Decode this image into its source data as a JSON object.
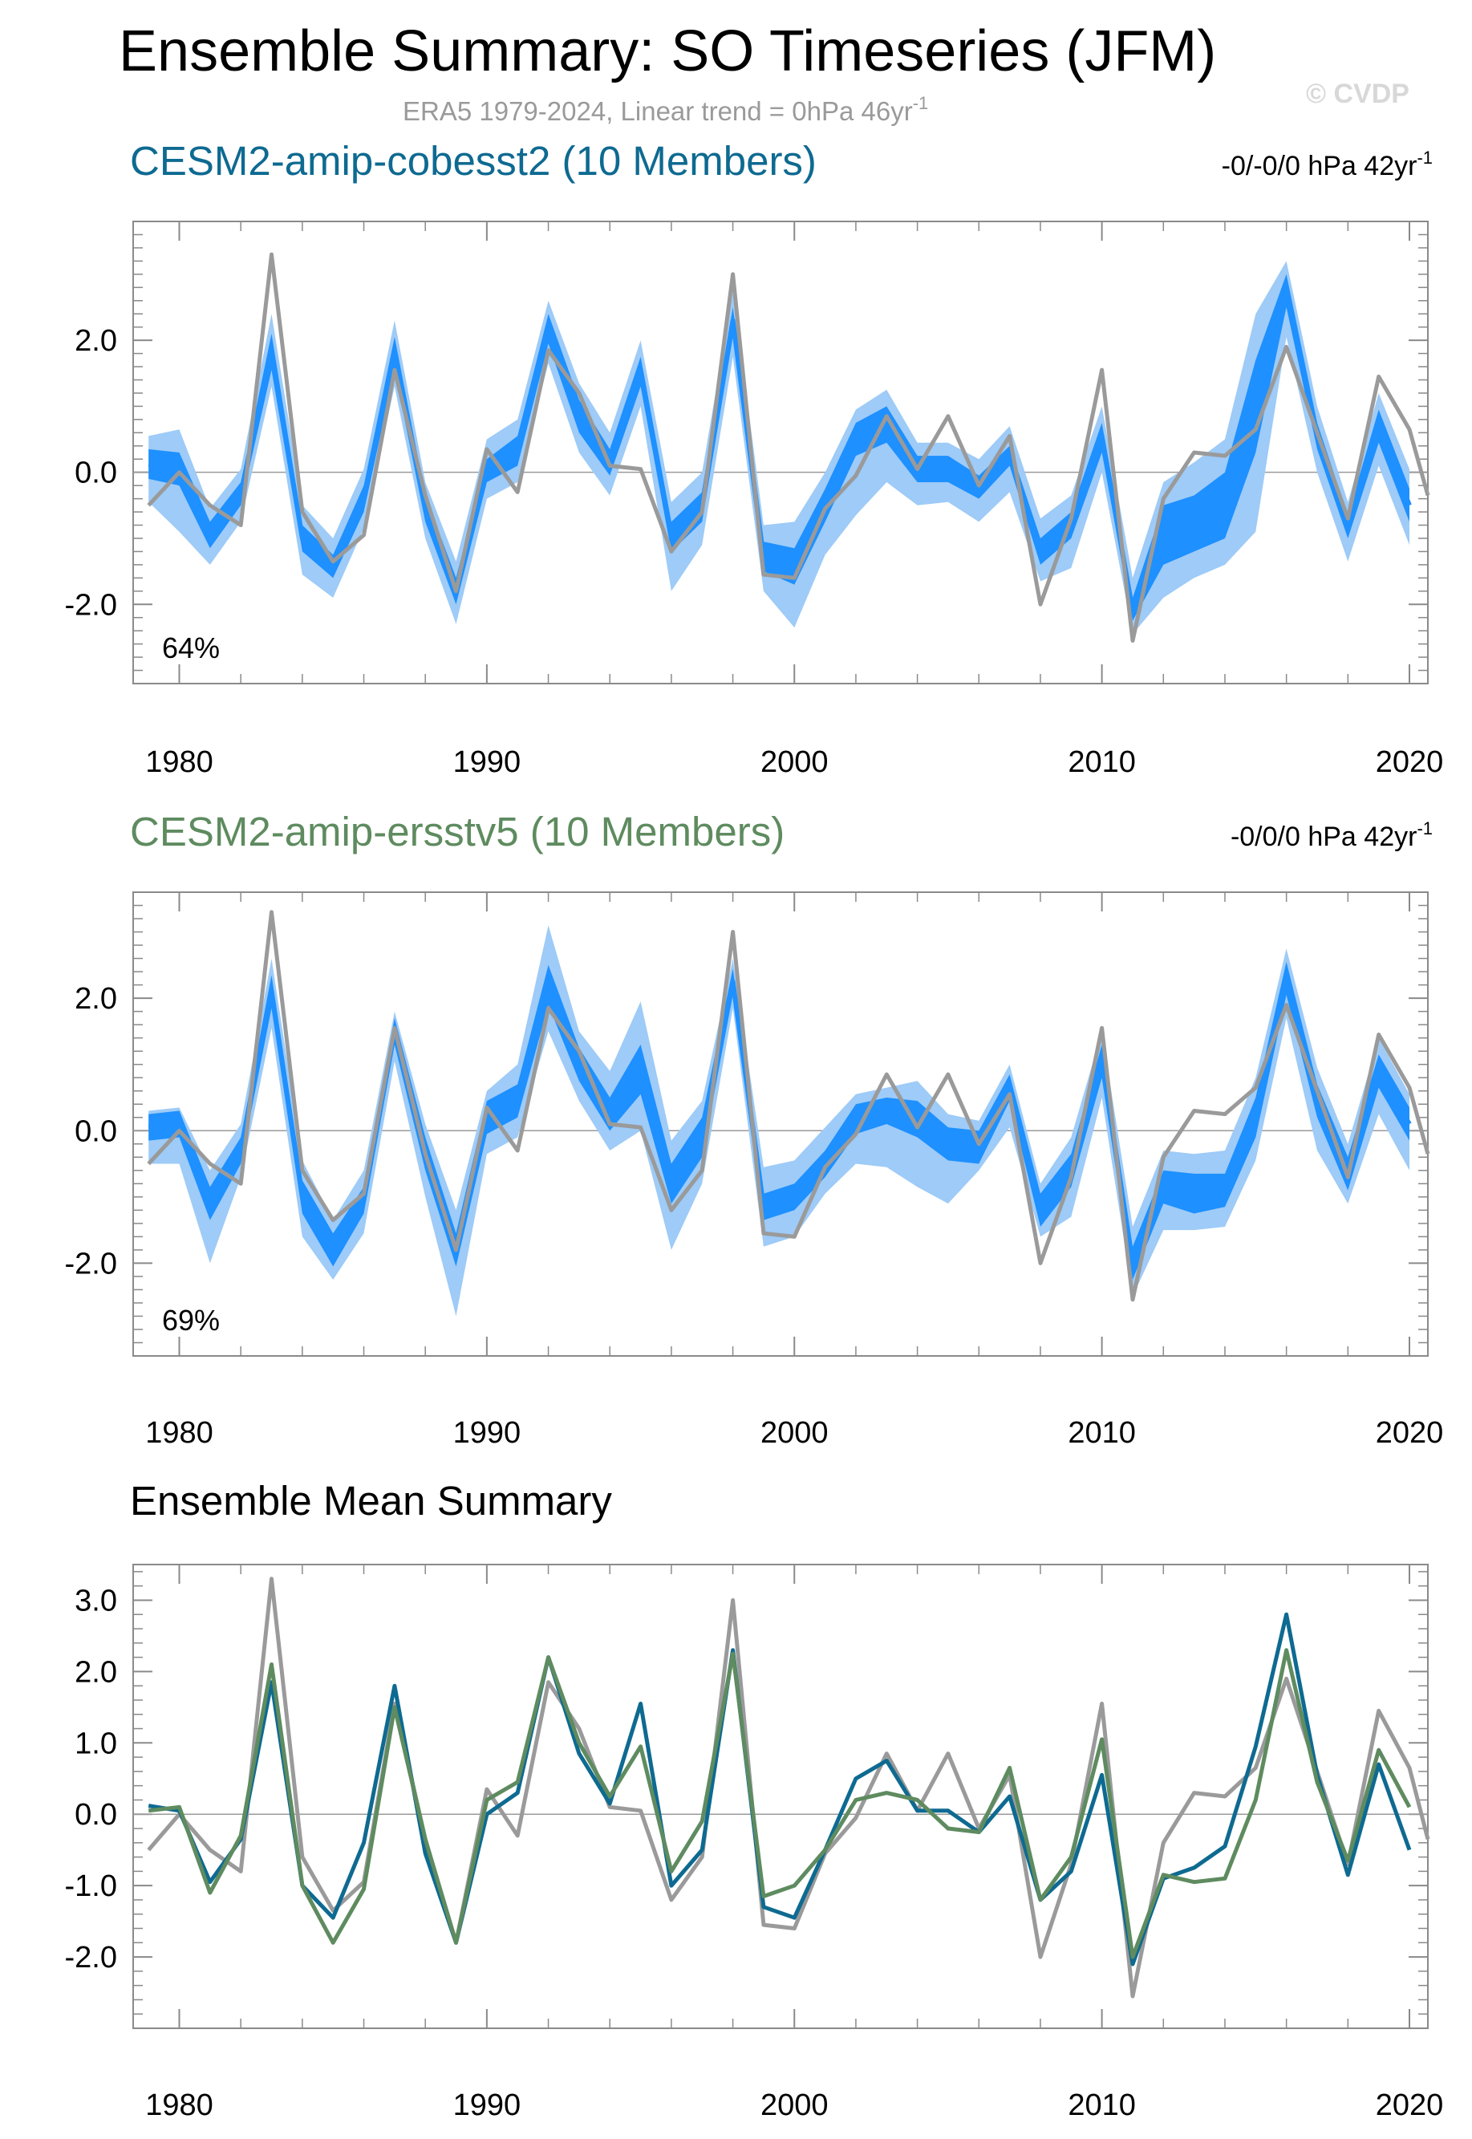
{
  "header": {
    "title": "Ensemble Summary: SO Timeseries (JFM)",
    "subtitle": "ERA5 1979-2024, Linear trend = 0hPa 46yr",
    "subtitle_sup": "-1",
    "watermark": "© CVDP"
  },
  "chart_data": [
    {
      "type": "area",
      "title": "CESM2-amip-cobesst2 (10 Members)",
      "title_color": "#0e6a91",
      "trend_text": "-0/-0/0 hPa 42yr",
      "trend_sup": "-1",
      "corr_label": "64%",
      "ylim": [
        -3.2,
        3.8
      ],
      "xlim": [
        1978.5,
        2020.6
      ],
      "yticks": [
        -2.0,
        0.0,
        2.0
      ],
      "ytick_labels": [
        "-2.0",
        "0.0",
        "2.0"
      ],
      "xticks": [
        1980,
        1990,
        2000,
        2010,
        2020
      ],
      "xtick_labels": [
        "1980",
        "1990",
        "2000",
        "2010",
        "2020"
      ],
      "colors": {
        "mean": "#1e90ff",
        "inner": "#1e90ff",
        "outer": "#9ecbf7",
        "obs": "#9a9a9a"
      },
      "years": [
        1979,
        1980,
        1981,
        1982,
        1983,
        1984,
        1985,
        1986,
        1987,
        1988,
        1989,
        1990,
        1991,
        1992,
        1993,
        1994,
        1995,
        1996,
        1997,
        1998,
        1999,
        2000,
        2001,
        2002,
        2003,
        2004,
        2005,
        2006,
        2007,
        2008,
        2009,
        2010,
        2011,
        2012,
        2013,
        2014,
        2015,
        2016,
        2017,
        2018,
        2019,
        2020
      ],
      "mean": [
        0.12,
        0.05,
        -0.95,
        -0.35,
        1.85,
        -1.0,
        -1.45,
        -0.4,
        1.8,
        -0.55,
        -1.8,
        0.0,
        0.3,
        2.2,
        0.85,
        0.15,
        1.55,
        -1.0,
        -0.5,
        2.3,
        -1.3,
        -1.45,
        -0.5,
        0.5,
        0.75,
        0.05,
        0.05,
        -0.25,
        0.25,
        -1.2,
        -0.8,
        0.55,
        -2.1,
        -0.9,
        -0.75,
        -0.45,
        0.95,
        2.8,
        0.55,
        -0.85,
        0.7,
        -0.5
      ],
      "inner_low": [
        -0.1,
        -0.2,
        -1.15,
        -0.5,
        1.55,
        -1.2,
        -1.6,
        -0.6,
        1.55,
        -0.75,
        -2.0,
        -0.15,
        0.1,
        1.95,
        0.6,
        -0.05,
        1.3,
        -1.2,
        -0.75,
        2.05,
        -1.5,
        -1.7,
        -0.75,
        0.25,
        0.45,
        -0.15,
        -0.15,
        -0.4,
        0.1,
        -1.4,
        -1.0,
        0.3,
        -2.25,
        -1.4,
        -1.2,
        -1.0,
        0.3,
        2.5,
        0.35,
        -1.0,
        0.45,
        -0.75
      ],
      "inner_high": [
        0.35,
        0.3,
        -0.75,
        -0.15,
        2.1,
        -0.8,
        -1.25,
        -0.2,
        2.05,
        -0.35,
        -1.6,
        0.2,
        0.55,
        2.4,
        1.1,
        0.35,
        1.75,
        -0.75,
        -0.3,
        2.5,
        -1.05,
        -1.15,
        -0.25,
        0.75,
        1.0,
        0.25,
        0.25,
        -0.05,
        0.4,
        -1.0,
        -0.6,
        0.75,
        -1.9,
        -0.5,
        -0.35,
        0.0,
        1.7,
        3.0,
        0.75,
        -0.65,
        0.95,
        -0.25
      ],
      "outer_low": [
        -0.45,
        -0.9,
        -1.4,
        -0.75,
        1.3,
        -1.55,
        -1.9,
        -0.85,
        1.3,
        -1.0,
        -2.3,
        -0.4,
        -0.15,
        1.65,
        0.3,
        -0.35,
        1.0,
        -1.8,
        -1.1,
        1.75,
        -1.8,
        -2.35,
        -1.25,
        -0.65,
        -0.15,
        -0.5,
        -0.45,
        -0.75,
        -0.3,
        -1.65,
        -1.45,
        0.0,
        -2.45,
        -1.9,
        -1.6,
        -1.4,
        -0.9,
        2.05,
        0.0,
        -1.35,
        0.1,
        -1.1
      ],
      "outer_high": [
        0.55,
        0.65,
        -0.55,
        0.05,
        2.4,
        -0.5,
        -1.0,
        0.05,
        2.3,
        -0.15,
        -1.35,
        0.5,
        0.8,
        2.6,
        1.35,
        0.6,
        2.0,
        -0.45,
        0.0,
        2.75,
        -0.8,
        -0.75,
        0.0,
        0.95,
        1.25,
        0.45,
        0.45,
        0.2,
        0.7,
        -0.7,
        -0.35,
        1.0,
        -1.6,
        -0.15,
        0.15,
        0.5,
        2.4,
        3.2,
        1.0,
        -0.45,
        1.2,
        0.05
      ],
      "obs_years": [
        1979,
        1980,
        1981,
        1982,
        1983,
        1984,
        1985,
        1986,
        1987,
        1988,
        1989,
        1990,
        1991,
        1992,
        1993,
        1994,
        1995,
        1996,
        1997,
        1998,
        1999,
        2000,
        2001,
        2002,
        2003,
        2004,
        2005,
        2006,
        2007,
        2008,
        2009,
        2010,
        2011,
        2012,
        2013,
        2014,
        2015,
        2016,
        2017,
        2018,
        2019,
        2020,
        2020.6
      ],
      "obs": [
        -0.5,
        0.0,
        -0.5,
        -0.8,
        3.3,
        -0.6,
        -1.35,
        -0.95,
        1.55,
        -0.35,
        -1.8,
        0.35,
        -0.3,
        1.85,
        1.2,
        0.1,
        0.05,
        -1.2,
        -0.6,
        3.0,
        -1.55,
        -1.6,
        -0.55,
        -0.05,
        0.85,
        0.05,
        0.85,
        -0.2,
        0.55,
        -2.0,
        -0.7,
        1.55,
        -2.55,
        -0.4,
        0.3,
        0.25,
        0.65,
        1.9,
        0.6,
        -0.7,
        1.45,
        0.65,
        -0.35
      ]
    },
    {
      "type": "area",
      "title": "CESM2-amip-ersstv5 (10 Members)",
      "title_color": "#5e8b5f",
      "trend_text": "-0/0/0 hPa 42yr",
      "trend_sup": "-1",
      "corr_label": "69%",
      "ylim": [
        -3.4,
        3.6
      ],
      "xlim": [
        1978.5,
        2020.6
      ],
      "yticks": [
        -2.0,
        0.0,
        2.0
      ],
      "ytick_labels": [
        "-2.0",
        "0.0",
        "2.0"
      ],
      "xticks": [
        1980,
        1990,
        2000,
        2010,
        2020
      ],
      "xtick_labels": [
        "1980",
        "1990",
        "2000",
        "2010",
        "2020"
      ],
      "colors": {
        "mean": "#1e90ff",
        "inner": "#1e90ff",
        "outer": "#9ecbf7",
        "obs": "#9a9a9a"
      },
      "years": [
        1979,
        1980,
        1981,
        1982,
        1983,
        1984,
        1985,
        1986,
        1987,
        1988,
        1989,
        1990,
        1991,
        1992,
        1993,
        1994,
        1995,
        1996,
        1997,
        1998,
        1999,
        2000,
        2001,
        2002,
        2003,
        2004,
        2005,
        2006,
        2007,
        2008,
        2009,
        2010,
        2011,
        2012,
        2013,
        2014,
        2015,
        2016,
        2017,
        2018,
        2019,
        2020
      ],
      "mean": [
        0.05,
        0.1,
        -1.1,
        -0.3,
        2.1,
        -1.0,
        -1.8,
        -1.05,
        1.5,
        -0.35,
        -1.8,
        0.2,
        0.45,
        2.2,
        1.0,
        0.25,
        0.95,
        -0.8,
        -0.1,
        2.25,
        -1.15,
        -1.0,
        -0.5,
        0.2,
        0.3,
        0.2,
        -0.2,
        -0.25,
        0.65,
        -1.2,
        -0.6,
        1.05,
        -2.0,
        -0.85,
        -0.95,
        -0.9,
        0.2,
        2.3,
        0.45,
        -0.65,
        0.9,
        0.1
      ],
      "inner_low": [
        -0.15,
        -0.1,
        -1.35,
        -0.5,
        1.85,
        -1.25,
        -2.05,
        -1.25,
        1.3,
        -0.6,
        -2.05,
        -0.05,
        0.2,
        1.9,
        0.75,
        0.0,
        0.55,
        -1.1,
        -0.4,
        2.05,
        -1.35,
        -1.2,
        -0.7,
        -0.05,
        0.1,
        -0.1,
        -0.45,
        -0.5,
        0.45,
        -1.45,
        -0.85,
        0.8,
        -2.25,
        -1.1,
        -1.25,
        -1.15,
        -0.1,
        2.05,
        0.2,
        -0.9,
        0.65,
        -0.15
      ],
      "inner_high": [
        0.25,
        0.3,
        -0.85,
        -0.1,
        2.35,
        -0.75,
        -1.55,
        -0.85,
        1.7,
        -0.1,
        -1.55,
        0.45,
        0.7,
        2.5,
        1.25,
        0.5,
        1.3,
        -0.5,
        0.2,
        2.45,
        -0.95,
        -0.8,
        -0.3,
        0.4,
        0.5,
        0.45,
        0.05,
        0.0,
        0.85,
        -0.95,
        -0.35,
        1.3,
        -1.75,
        -0.6,
        -0.65,
        -0.65,
        0.5,
        2.55,
        0.7,
        -0.4,
        1.15,
        0.35
      ],
      "outer_low": [
        -0.5,
        -0.5,
        -2.0,
        -0.7,
        1.55,
        -1.6,
        -2.25,
        -1.55,
        1.05,
        -1.0,
        -2.8,
        -0.35,
        -0.1,
        1.5,
        0.45,
        -0.3,
        0.0,
        -1.8,
        -0.8,
        1.85,
        -1.75,
        -1.6,
        -0.95,
        -0.5,
        -0.55,
        -0.85,
        -1.1,
        -0.6,
        0.05,
        -1.6,
        -1.3,
        0.5,
        -2.5,
        -1.5,
        -1.5,
        -1.45,
        -0.45,
        1.7,
        -0.3,
        -1.1,
        0.25,
        -0.6
      ],
      "outer_high": [
        0.3,
        0.35,
        -0.6,
        0.1,
        2.6,
        -0.45,
        -1.35,
        -0.6,
        1.8,
        0.1,
        -1.2,
        0.6,
        1.0,
        3.1,
        1.5,
        0.9,
        1.95,
        -0.15,
        0.45,
        2.6,
        -0.55,
        -0.45,
        0.05,
        0.55,
        0.65,
        0.75,
        0.25,
        0.15,
        1.0,
        -0.8,
        -0.1,
        1.5,
        -1.45,
        -0.3,
        -0.35,
        -0.3,
        0.8,
        2.75,
        0.95,
        -0.2,
        1.4,
        0.55
      ],
      "obs_years": [
        1979,
        1980,
        1981,
        1982,
        1983,
        1984,
        1985,
        1986,
        1987,
        1988,
        1989,
        1990,
        1991,
        1992,
        1993,
        1994,
        1995,
        1996,
        1997,
        1998,
        1999,
        2000,
        2001,
        2002,
        2003,
        2004,
        2005,
        2006,
        2007,
        2008,
        2009,
        2010,
        2011,
        2012,
        2013,
        2014,
        2015,
        2016,
        2017,
        2018,
        2019,
        2020,
        2020.6
      ],
      "obs": [
        -0.5,
        0.0,
        -0.5,
        -0.8,
        3.3,
        -0.6,
        -1.35,
        -0.95,
        1.55,
        -0.35,
        -1.8,
        0.35,
        -0.3,
        1.85,
        1.2,
        0.1,
        0.05,
        -1.2,
        -0.6,
        3.0,
        -1.55,
        -1.6,
        -0.55,
        -0.05,
        0.85,
        0.05,
        0.85,
        -0.2,
        0.55,
        -2.0,
        -0.7,
        1.55,
        -2.55,
        -0.4,
        0.3,
        0.25,
        0.65,
        1.9,
        0.6,
        -0.7,
        1.45,
        0.65,
        -0.35
      ]
    },
    {
      "type": "line",
      "title": "Ensemble Mean Summary",
      "title_color": "#000000",
      "ylim": [
        -3.0,
        3.5
      ],
      "xlim": [
        1978.5,
        2020.6
      ],
      "yticks": [
        -2.0,
        -1.0,
        0.0,
        1.0,
        2.0,
        3.0
      ],
      "ytick_labels": [
        "-2.0",
        "-1.0",
        "0.0",
        "1.0",
        "2.0",
        "3.0"
      ],
      "xticks": [
        1980,
        1990,
        2000,
        2010,
        2020
      ],
      "xtick_labels": [
        "1980",
        "1990",
        "2000",
        "2010",
        "2020"
      ],
      "series": [
        {
          "color": "#9a9a9a",
          "x": [
            1979,
            1980,
            1981,
            1982,
            1983,
            1984,
            1985,
            1986,
            1987,
            1988,
            1989,
            1990,
            1991,
            1992,
            1993,
            1994,
            1995,
            1996,
            1997,
            1998,
            1999,
            2000,
            2001,
            2002,
            2003,
            2004,
            2005,
            2006,
            2007,
            2008,
            2009,
            2010,
            2011,
            2012,
            2013,
            2014,
            2015,
            2016,
            2017,
            2018,
            2019,
            2020,
            2020.6
          ],
          "values": [
            -0.5,
            0.0,
            -0.5,
            -0.8,
            3.3,
            -0.6,
            -1.35,
            -0.95,
            1.55,
            -0.35,
            -1.8,
            0.35,
            -0.3,
            1.85,
            1.2,
            0.1,
            0.05,
            -1.2,
            -0.6,
            3.0,
            -1.55,
            -1.6,
            -0.55,
            -0.05,
            0.85,
            0.05,
            0.85,
            -0.2,
            0.55,
            -2.0,
            -0.7,
            1.55,
            -2.55,
            -0.4,
            0.3,
            0.25,
            0.65,
            1.9,
            0.6,
            -0.7,
            1.45,
            0.65,
            -0.35
          ]
        },
        {
          "color": "#0e6a91",
          "x": [
            1979,
            1980,
            1981,
            1982,
            1983,
            1984,
            1985,
            1986,
            1987,
            1988,
            1989,
            1990,
            1991,
            1992,
            1993,
            1994,
            1995,
            1996,
            1997,
            1998,
            1999,
            2000,
            2001,
            2002,
            2003,
            2004,
            2005,
            2006,
            2007,
            2008,
            2009,
            2010,
            2011,
            2012,
            2013,
            2014,
            2015,
            2016,
            2017,
            2018,
            2019,
            2020
          ],
          "values": [
            0.12,
            0.05,
            -0.95,
            -0.35,
            1.85,
            -1.0,
            -1.45,
            -0.4,
            1.8,
            -0.55,
            -1.8,
            0.0,
            0.3,
            2.2,
            0.85,
            0.15,
            1.55,
            -1.0,
            -0.5,
            2.3,
            -1.3,
            -1.45,
            -0.5,
            0.5,
            0.75,
            0.05,
            0.05,
            -0.25,
            0.25,
            -1.2,
            -0.8,
            0.55,
            -2.1,
            -0.9,
            -0.75,
            -0.45,
            0.95,
            2.8,
            0.55,
            -0.85,
            0.7,
            -0.5
          ]
        },
        {
          "color": "#5e8b5f",
          "x": [
            1979,
            1980,
            1981,
            1982,
            1983,
            1984,
            1985,
            1986,
            1987,
            1988,
            1989,
            1990,
            1991,
            1992,
            1993,
            1994,
            1995,
            1996,
            1997,
            1998,
            1999,
            2000,
            2001,
            2002,
            2003,
            2004,
            2005,
            2006,
            2007,
            2008,
            2009,
            2010,
            2011,
            2012,
            2013,
            2014,
            2015,
            2016,
            2017,
            2018,
            2019,
            2020
          ],
          "values": [
            0.05,
            0.1,
            -1.1,
            -0.3,
            2.1,
            -1.0,
            -1.8,
            -1.05,
            1.5,
            -0.35,
            -1.8,
            0.2,
            0.45,
            2.2,
            1.0,
            0.25,
            0.95,
            -0.8,
            -0.1,
            2.25,
            -1.15,
            -1.0,
            -0.5,
            0.2,
            0.3,
            0.2,
            -0.2,
            -0.25,
            0.65,
            -1.2,
            -0.6,
            1.05,
            -2.0,
            -0.85,
            -0.95,
            -0.9,
            0.2,
            2.3,
            0.45,
            -0.65,
            0.9,
            0.1
          ]
        }
      ]
    }
  ]
}
